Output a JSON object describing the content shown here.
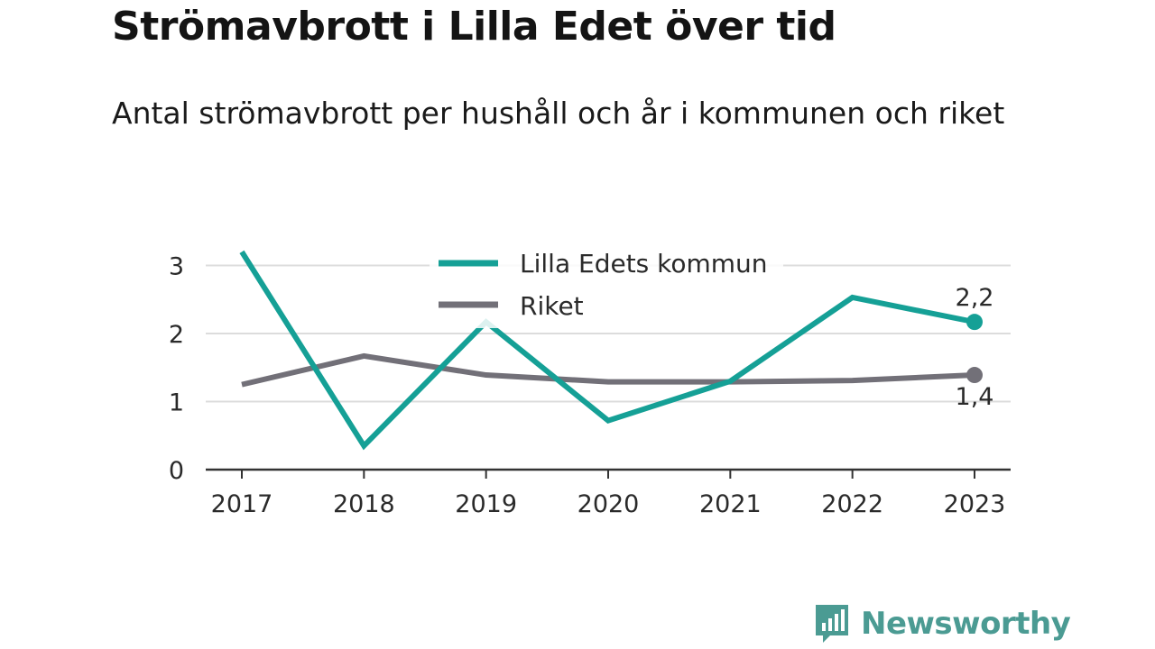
{
  "chart_data": {
    "type": "line",
    "title": "Strömavbrott i Lilla Edet över tid",
    "subtitle": "Antal strömavbrott per hushåll och år i kommunen och riket",
    "x": [
      "2017",
      "2018",
      "2019",
      "2020",
      "2021",
      "2022",
      "2023"
    ],
    "yticks": [
      "0",
      "1",
      "2",
      "3"
    ],
    "ylim": [
      0,
      3.3
    ],
    "grid": true,
    "legend_position": "top-center",
    "series": [
      {
        "name": "Lilla Edets kommun",
        "color": "#15a096",
        "values": [
          3.2,
          0.35,
          2.17,
          0.72,
          1.3,
          2.53,
          2.17
        ],
        "end_label": "2,2"
      },
      {
        "name": "Riket",
        "color": "#727078",
        "values": [
          1.25,
          1.67,
          1.39,
          1.29,
          1.29,
          1.31,
          1.39
        ],
        "end_label": "1,4"
      }
    ]
  },
  "brand": {
    "name": "Newsworthy",
    "color": "#4b9b93",
    "icon": "newsworthy-logo-icon"
  }
}
